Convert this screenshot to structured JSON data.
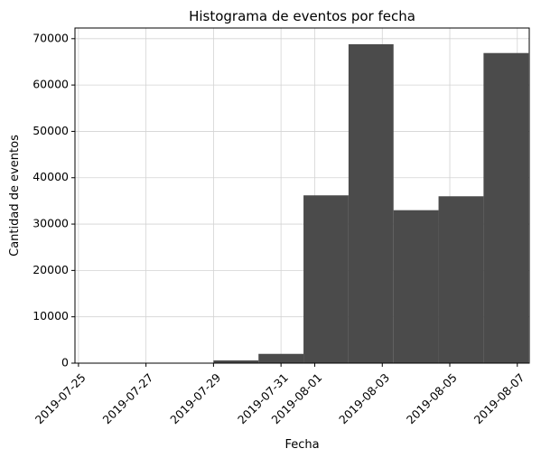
{
  "chart_data": {
    "type": "bar",
    "title": "Histograma de eventos por fecha",
    "xlabel": "Fecha",
    "ylabel": "Cantidad de eventos",
    "x_tick_labels": [
      "2019-07-25",
      "2019-07-27",
      "2019-07-29",
      "2019-07-31",
      "2019-08-01",
      "2019-08-03",
      "2019-08-05",
      "2019-08-07"
    ],
    "x_range": [
      "2019-07-24T21:30",
      "2019-08-07T08:30"
    ],
    "bins": [
      {
        "start": "2019-07-25T00:00",
        "end": "2019-07-26T08:00",
        "value": 9
      },
      {
        "start": "2019-07-26T08:00",
        "end": "2019-07-27T16:00",
        "value": 31
      },
      {
        "start": "2019-07-27T16:00",
        "end": "2019-07-29T00:00",
        "value": 55
      },
      {
        "start": "2019-07-29T00:00",
        "end": "2019-07-30T08:00",
        "value": 600
      },
      {
        "start": "2019-07-30T08:00",
        "end": "2019-07-31T16:00",
        "value": 2000
      },
      {
        "start": "2019-07-31T16:00",
        "end": "2019-08-02T00:00",
        "value": 36200
      },
      {
        "start": "2019-08-02T00:00",
        "end": "2019-08-03T08:00",
        "value": 68800
      },
      {
        "start": "2019-08-03T08:00",
        "end": "2019-08-04T16:00",
        "value": 33000
      },
      {
        "start": "2019-08-04T16:00",
        "end": "2019-08-06T00:00",
        "value": 36000
      },
      {
        "start": "2019-08-06T00:00",
        "end": "2019-08-07T08:00",
        "value": 66900
      }
    ],
    "y_ticks": [
      0,
      10000,
      20000,
      30000,
      40000,
      50000,
      60000,
      70000
    ],
    "ylim": [
      0,
      72300
    ],
    "grid": true,
    "bar_color": "#4b4b4b",
    "grid_color": "#d3d3d3"
  }
}
